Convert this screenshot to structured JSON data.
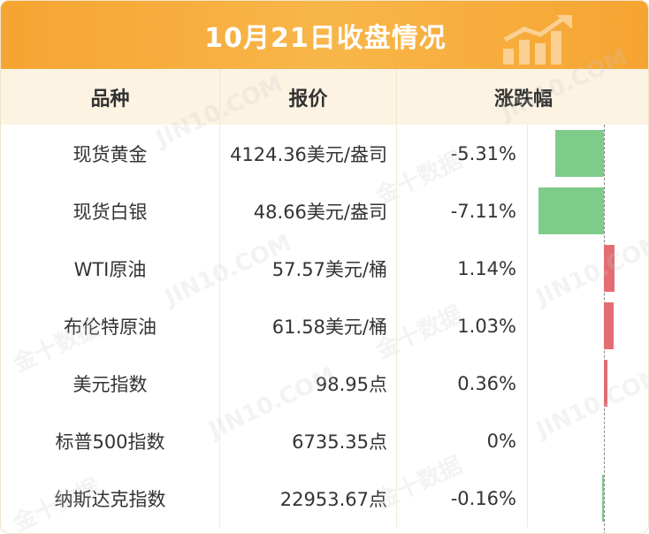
{
  "title": "10月21日收盘情况",
  "header": {
    "col_name": "品种",
    "col_price": "报价",
    "col_change": "涨跌幅"
  },
  "rows": [
    {
      "name": "现货黄金",
      "price": "4124.36美元/盎司",
      "change": "-5.31%",
      "value": -5.31
    },
    {
      "name": "现货白银",
      "price": "48.66美元/盎司",
      "change": "-7.11%",
      "value": -7.11
    },
    {
      "name": "WTI原油",
      "price": "57.57美元/桶",
      "change": "1.14%",
      "value": 1.14
    },
    {
      "name": "布伦特原油",
      "price": "61.58美元/桶",
      "change": "1.03%",
      "value": 1.03
    },
    {
      "name": "美元指数",
      "price": "98.95点",
      "change": "0.36%",
      "value": 0.36
    },
    {
      "name": "标普500指数",
      "price": "6735.35点",
      "change": "0%",
      "value": 0
    },
    {
      "name": "纳斯达克指数",
      "price": "22953.67点",
      "change": "-0.16%",
      "value": -0.16
    }
  ],
  "watermarks": [
    "JIN10.COM",
    "金十数据"
  ],
  "colors": {
    "title_bg": "#f6a431",
    "header_bg": "#fdf3e3",
    "negative": "#7fcb8a",
    "positive": "#e36d72"
  },
  "icons": {
    "title_decoration": "rising-chart-icon"
  }
}
